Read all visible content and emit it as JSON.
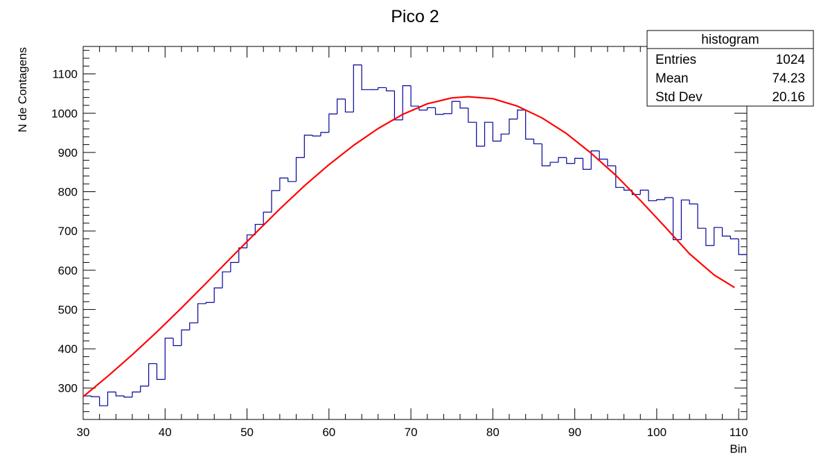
{
  "chart_data": {
    "type": "bar",
    "title": "Pico 2",
    "xlabel": "Bin",
    "ylabel": "N de Contagens",
    "xlim": [
      30,
      111
    ],
    "ylim": [
      220,
      1170
    ],
    "xticks": [
      30,
      40,
      50,
      60,
      70,
      80,
      90,
      100,
      110
    ],
    "yticks": [
      300,
      400,
      500,
      600,
      700,
      800,
      900,
      1000,
      1100
    ],
    "histogram": {
      "name": "histogram",
      "color": "#000099",
      "bin_width": 1,
      "x_start": 30,
      "values": [
        280,
        278,
        255,
        290,
        280,
        277,
        290,
        305,
        362,
        322,
        427,
        408,
        448,
        466,
        515,
        518,
        555,
        596,
        620,
        657,
        690,
        717,
        748,
        803,
        835,
        826,
        887,
        944,
        942,
        951,
        998,
        1036,
        1003,
        1123,
        1060,
        1060,
        1065,
        1057,
        983,
        1070,
        1018,
        1008,
        1014,
        997,
        999,
        1030,
        1013,
        977,
        916,
        977,
        929,
        947,
        985,
        1008,
        934,
        922,
        866,
        875,
        887,
        872,
        885,
        857,
        904,
        883,
        866,
        811,
        804,
        793,
        804,
        777,
        780,
        785,
        678,
        779,
        769,
        707,
        663,
        709,
        687,
        680,
        640
      ]
    },
    "fit_curve": {
      "color": "#ff0000",
      "x": [
        30,
        33,
        36,
        39,
        42,
        45,
        48,
        51,
        54,
        57,
        60,
        63,
        66,
        69,
        72,
        75,
        77,
        80,
        83,
        86,
        89,
        92,
        95,
        98,
        101,
        104,
        107,
        109.5
      ],
      "y": [
        278,
        330,
        385,
        443,
        504,
        567,
        631,
        694,
        756,
        815,
        869,
        918,
        961,
        997,
        1024,
        1039,
        1042,
        1037,
        1018,
        988,
        948,
        898,
        842,
        778,
        711,
        642,
        588,
        556
      ]
    },
    "stats_box": {
      "title": "histogram",
      "rows": [
        {
          "label": "Entries",
          "value": "1024"
        },
        {
          "label": "Mean",
          "value": "74.23"
        },
        {
          "label": "Std Dev",
          "value": "20.16"
        }
      ]
    }
  }
}
